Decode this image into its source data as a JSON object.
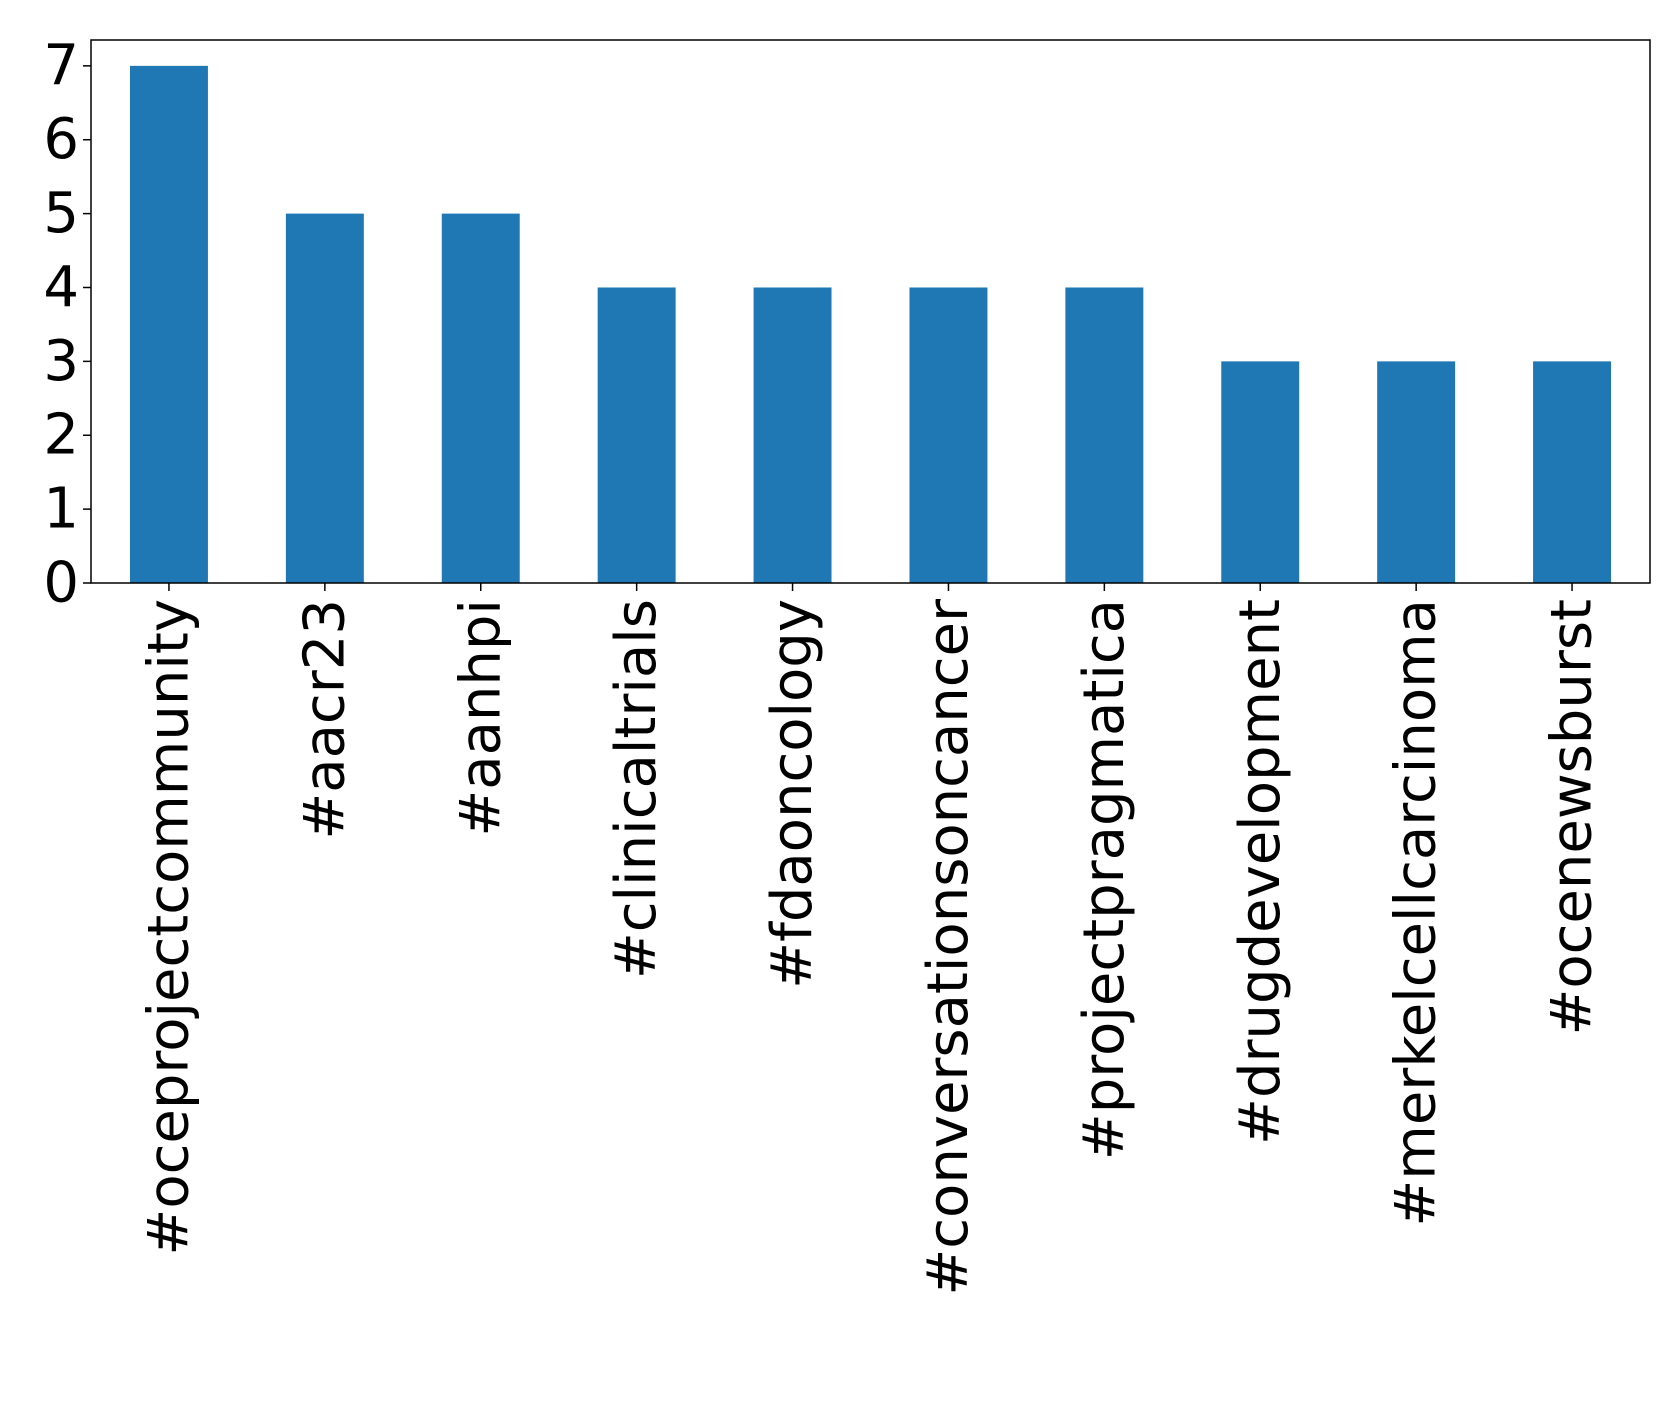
{
  "chart_data": {
    "type": "bar",
    "title": "",
    "xlabel": "",
    "ylabel": "",
    "categories": [
      "#oceprojectcommunity",
      "#aacr23",
      "#aanhpi",
      "#clinicaltrials",
      "#fdaoncology",
      "#conversationsoncancer",
      "#projectpragmatica",
      "#drugdevelopment",
      "#merkelcellcarcinoma",
      "#ocenewsburst"
    ],
    "values": [
      7,
      5,
      5,
      4,
      4,
      4,
      4,
      3,
      3,
      3
    ],
    "ylim": [
      0,
      7.35
    ],
    "yticks": [
      0,
      1,
      2,
      3,
      4,
      5,
      6,
      7
    ],
    "grid": false,
    "legend": "none",
    "bar_color": "#1f77b4"
  }
}
